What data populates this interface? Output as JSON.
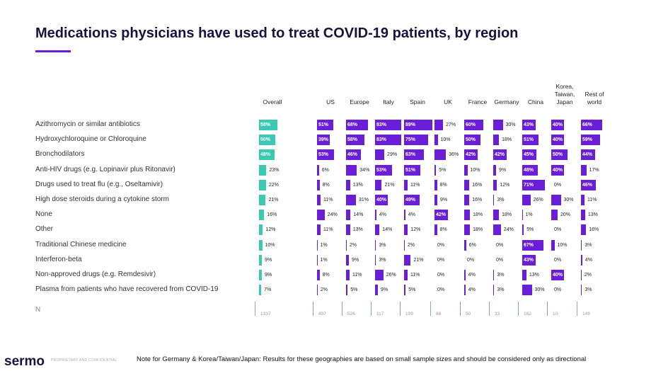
{
  "chart_data": {
    "type": "bar-table",
    "title": "Medications physicians have used to treat COVID-19 patients, by region",
    "categories": [
      "Azithromycin or similar antibiotics",
      "Hydroxychloroquine or Chloroquine",
      "Bronchodilators",
      "Anti-HIV drugs (e.g. Lopinavir plus Ritonavir)",
      "Drugs used to treat flu (e.g., Oseltamivir)",
      "High dose steroids during a cytokine storm",
      "None",
      "Other",
      "Traditional Chinese medicine",
      "Interferon-beta",
      "Non-approved drugs (e.g. Remdesivir)",
      "Plasma from patients who have recovered from COVID-19"
    ],
    "n_label": "N",
    "series": [
      {
        "name": "Overall",
        "color": "#3cc9b4",
        "values": [
          58,
          50,
          48,
          23,
          22,
          21,
          16,
          12,
          10,
          9,
          9,
          7
        ],
        "value_labels": [
          "58%",
          "50%",
          "48%",
          "23%",
          "22%",
          "21%",
          "16%",
          "12%",
          "10%",
          "9%",
          "9%",
          "7%"
        ],
        "n": 1337
      },
      {
        "name": "US",
        "color": "#6a1ed8",
        "values": [
          51,
          39,
          53,
          6,
          8,
          11,
          24,
          11,
          1,
          1,
          8,
          2
        ],
        "value_labels": [
          "51%",
          "39%",
          "53%",
          "6%",
          "8%",
          "11%",
          "24%",
          "11%",
          "1%",
          "1%",
          "8%",
          "2%"
        ],
        "n": 497
      },
      {
        "name": "Europe",
        "color": "#6a1ed8",
        "values": [
          68,
          58,
          46,
          34,
          13,
          31,
          14,
          13,
          2,
          9,
          11,
          5
        ],
        "value_labels": [
          "68%",
          "58%",
          "46%",
          "34%",
          "13%",
          "31%",
          "14%",
          "13%",
          "2%",
          "9%",
          "11%",
          "5%"
        ],
        "n": 526
      },
      {
        "name": "Italy",
        "color": "#6a1ed8",
        "values": [
          83,
          83,
          29,
          53,
          21,
          40,
          4,
          14,
          3,
          3,
          26,
          9
        ],
        "value_labels": [
          "83%",
          "83%",
          "29%",
          "53%",
          "21%",
          "40%",
          "4%",
          "14%",
          "3%",
          "3%",
          "26%",
          "9%"
        ],
        "n": 117
      },
      {
        "name": "Spain",
        "color": "#6a1ed8",
        "values": [
          89,
          75,
          63,
          51,
          11,
          49,
          4,
          12,
          2,
          21,
          11,
          5
        ],
        "value_labels": [
          "89%",
          "75%",
          "63%",
          "51%",
          "11%",
          "49%",
          "4%",
          "12%",
          "2%",
          "21%",
          "11%",
          "5%"
        ],
        "n": 199
      },
      {
        "name": "UK",
        "color": "#6a1ed8",
        "values": [
          27,
          10,
          36,
          5,
          8,
          9,
          42,
          8,
          0,
          0,
          0,
          0
        ],
        "value_labels": [
          "27%",
          "10%",
          "36%",
          "5%",
          "8%",
          "9%",
          "42%",
          "8%",
          "0%",
          "0%",
          "0%",
          "0%"
        ],
        "n": 88
      },
      {
        "name": "France",
        "color": "#6a1ed8",
        "values": [
          60,
          50,
          42,
          10,
          16,
          16,
          18,
          18,
          6,
          0,
          4,
          4
        ],
        "value_labels": [
          "60%",
          "50%",
          "42%",
          "10%",
          "16%",
          "16%",
          "18%",
          "18%",
          "6%",
          "0%",
          "4%",
          "4%"
        ],
        "n": 50
      },
      {
        "name": "Germany",
        "color": "#6a1ed8",
        "values": [
          30,
          18,
          42,
          9,
          12,
          3,
          18,
          24,
          0,
          0,
          3,
          3
        ],
        "value_labels": [
          "30%",
          "18%",
          "42%",
          "9%",
          "12%",
          "3%",
          "18%",
          "24%",
          "0%",
          "0%",
          "3%",
          "3%"
        ],
        "n": 33
      },
      {
        "name": "China",
        "color": "#6a1ed8",
        "values": [
          43,
          51,
          45,
          48,
          71,
          26,
          1,
          5,
          67,
          43,
          13,
          30
        ],
        "value_labels": [
          "43%",
          "51%",
          "45%",
          "48%",
          "71%",
          "26%",
          "1%",
          "5%",
          "67%",
          "43%",
          "13%",
          "30%"
        ],
        "n": 162
      },
      {
        "name": "Korea, Taiwan, Japan",
        "color": "#6a1ed8",
        "values": [
          40,
          40,
          50,
          40,
          0,
          30,
          20,
          0,
          10,
          0,
          40,
          0
        ],
        "value_labels": [
          "40%",
          "40%",
          "50%",
          "40%",
          "0%",
          "30%",
          "20%",
          "0%",
          "10%",
          "0%",
          "40%",
          "0%"
        ],
        "n": 10
      },
      {
        "name": "Rest of world",
        "color": "#6a1ed8",
        "values": [
          66,
          59,
          44,
          17,
          46,
          11,
          13,
          16,
          3,
          4,
          2,
          3
        ],
        "value_labels": [
          "66%",
          "59%",
          "44%",
          "17%",
          "46%",
          "11%",
          "13%",
          "16%",
          "3%",
          "4%",
          "2%",
          "3%"
        ],
        "n": 149
      }
    ]
  },
  "footer": {
    "logo": "sermo",
    "confidential": "PROPRIETARY AND CONFIDENTIAL",
    "note": "Note for Germany & Korea/Taiwan/Japan: Results for these geographies are based on small sample sizes and should be considered only as directional"
  }
}
